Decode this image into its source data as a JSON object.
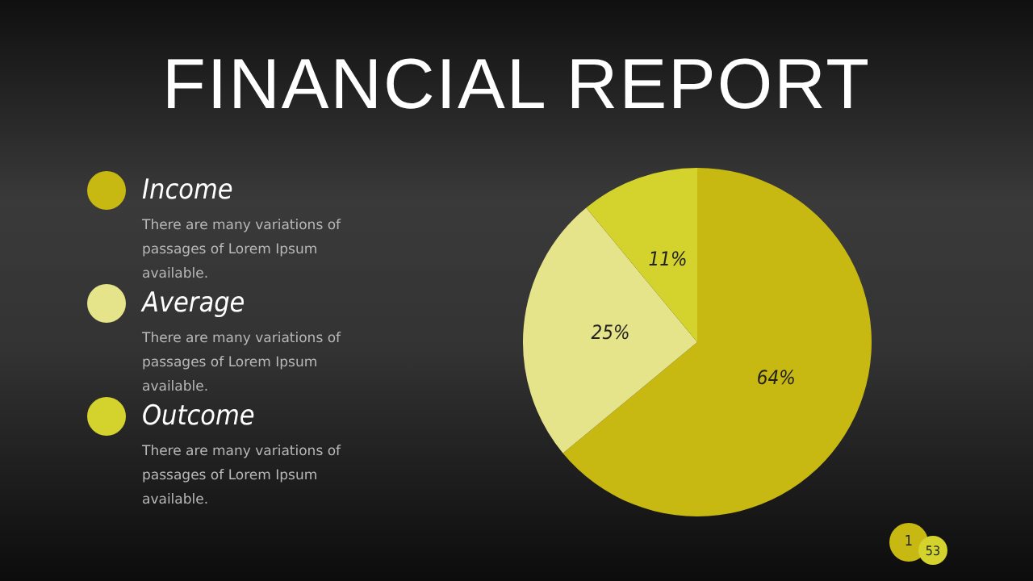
{
  "chart_data": {
    "type": "pie",
    "title": "FINANCIAL REPORT",
    "categories": [
      "Income",
      "Average",
      "Outcome"
    ],
    "values": [
      64,
      25,
      11
    ],
    "colors": [
      "#c8b812",
      "#e6e48a",
      "#d4d22c"
    ],
    "value_labels": [
      "64%",
      "25%",
      "11%"
    ],
    "legend": "left",
    "annotations": [
      "There are many variations of passages of Lorem Ipsum available.",
      "There are many variations of passages of Lorem Ipsum available.",
      "There are many variations of passages of Lorem Ipsum available.",
      "1",
      "53"
    ]
  }
}
